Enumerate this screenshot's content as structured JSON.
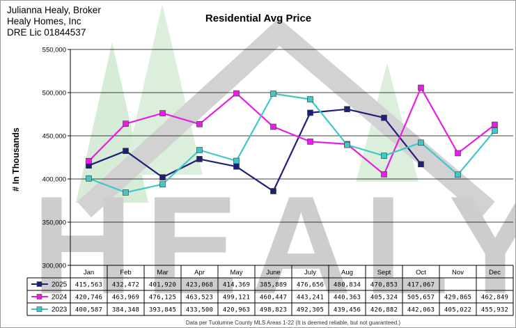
{
  "header": {
    "broker_name": "Julianna Healy, Broker",
    "company": "Healy Homes, Inc",
    "license": "DRE Lic 01844537"
  },
  "watermark": {
    "text": "HEALY",
    "colors": {
      "trees": "#cfe8cf",
      "letters": "#c8c8c8"
    }
  },
  "footnote": "Data per Tuolumne County MLS Areas 1-22 (It is deemed reliable, but not guaranteed.)",
  "chart_data": {
    "type": "line",
    "title": "Residential Avg Price",
    "ylabel": "# In Thousands",
    "xlabel": "",
    "ylim": [
      300000,
      550000
    ],
    "y_ticks": [
      "300,000",
      "350,000",
      "400,000",
      "450,000",
      "500,000",
      "550,000"
    ],
    "y_tick_values": [
      300000,
      350000,
      400000,
      450000,
      500000,
      550000
    ],
    "grid": true,
    "legend_placement": "data table, left",
    "categories": [
      "Jan",
      "Feb",
      "Mar",
      "Apr",
      "May",
      "June",
      "July",
      "Aug",
      "Sept",
      "Oct",
      "Nov",
      "Dec"
    ],
    "series": [
      {
        "name": "2025",
        "color": "#1f1f7a",
        "values": [
          415563,
          432472,
          401920,
          423068,
          414369,
          385889,
          476656,
          480834,
          470853,
          417067,
          null,
          null
        ],
        "labels": [
          "415,563",
          "432,472",
          "401,920",
          "423,068",
          "414,369",
          "385,889",
          "476,656",
          "480,834",
          "470,853",
          "417,067",
          "",
          ""
        ]
      },
      {
        "name": "2024",
        "color": "#e61ee6",
        "values": [
          420746,
          463969,
          476125,
          463523,
          499121,
          460447,
          443241,
          440363,
          405324,
          505657,
          429865,
          462849
        ],
        "labels": [
          "420,746",
          "463,969",
          "476,125",
          "463,523",
          "499,121",
          "460,447",
          "443,241",
          "440,363",
          "405,324",
          "505,657",
          "429,865",
          "462,849"
        ]
      },
      {
        "name": "2023",
        "color": "#3ec8c8",
        "values": [
          400587,
          384348,
          393845,
          433500,
          420963,
          498823,
          492305,
          439456,
          426882,
          442063,
          405022,
          455932
        ],
        "labels": [
          "400,587",
          "384,348",
          "393,845",
          "433,500",
          "420,963",
          "498,823",
          "492,305",
          "439,456",
          "426,882",
          "442,063",
          "405,022",
          "455,932"
        ]
      }
    ]
  }
}
